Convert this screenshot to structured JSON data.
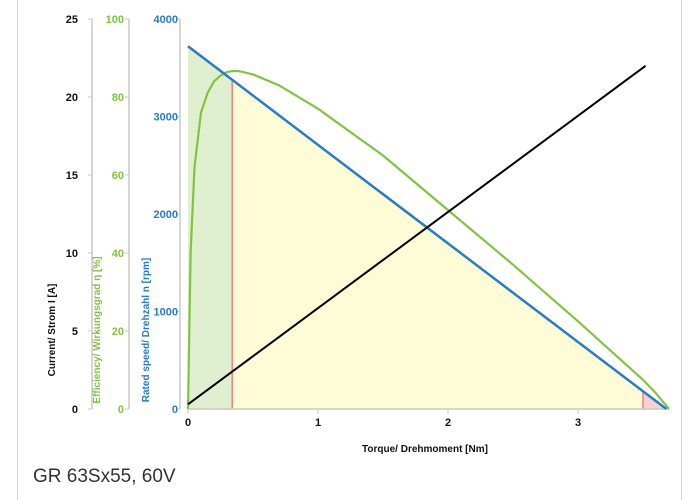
{
  "caption": "GR 63Sx55, 60V",
  "colors": {
    "current": "#000000",
    "current_axis_text": "#111111",
    "efficiency": "#82c341",
    "speed": "#2a7bc4",
    "fill_low_load": "#e0efcf",
    "fill_operating": "#fdfcd6",
    "fill_high_load": "#f8d2d2",
    "marker_line": "#f08080",
    "axis_line": "#c9c9c9"
  },
  "chart_data": {
    "type": "line",
    "xlabel": "Torque/ Drehmoment [Nm]",
    "xlim": [
      0,
      3.7
    ],
    "x_ticks": [
      "0",
      "1",
      "2",
      "3"
    ],
    "y_axes": [
      {
        "id": "current",
        "label": "Current/ Strom I [A]",
        "range": [
          0,
          25
        ],
        "ticks": [
          "0",
          "5",
          "10",
          "15",
          "20",
          "25"
        ],
        "color": "#111111"
      },
      {
        "id": "efficiency",
        "label": "Efficiency/ Wirkungsgrad η [%]",
        "range": [
          0,
          100
        ],
        "ticks": [
          "0",
          "20",
          "40",
          "60",
          "80",
          "100"
        ],
        "color": "#82c341"
      },
      {
        "id": "speed",
        "label": "Rated speed/ Drehzahl n [rpm]",
        "range": [
          0,
          4000
        ],
        "ticks": [
          "0",
          "1000",
          "2000",
          "3000",
          "4000"
        ],
        "color": "#2a7bc4"
      }
    ],
    "series": [
      {
        "id": "speed",
        "axis": "speed",
        "x": [
          0,
          3.68
        ],
        "y": [
          3720,
          0
        ]
      },
      {
        "id": "current",
        "axis": "current",
        "x": [
          0,
          3.52
        ],
        "y": [
          0.3,
          22
        ]
      },
      {
        "id": "efficiency",
        "axis": "efficiency",
        "x": [
          0,
          0.02,
          0.05,
          0.1,
          0.15,
          0.2,
          0.25,
          0.3,
          0.35,
          0.4,
          0.5,
          0.7,
          1.0,
          1.5,
          2.0,
          2.5,
          3.0,
          3.3,
          3.5,
          3.6,
          3.65,
          3.7
        ],
        "y": [
          0,
          40,
          62,
          76,
          81,
          84,
          85.5,
          86.4,
          86.7,
          86.6,
          85.8,
          83,
          77,
          65,
          51,
          37,
          22.5,
          13.5,
          7.5,
          4,
          2,
          0
        ]
      }
    ],
    "regions": [
      {
        "from": 0,
        "to": 0.34
      },
      {
        "from": 0.34,
        "to": 3.5
      },
      {
        "from": 3.5,
        "to": 3.68
      }
    ],
    "markers": [
      0.34,
      3.5
    ],
    "grid": false,
    "legend": "none"
  }
}
